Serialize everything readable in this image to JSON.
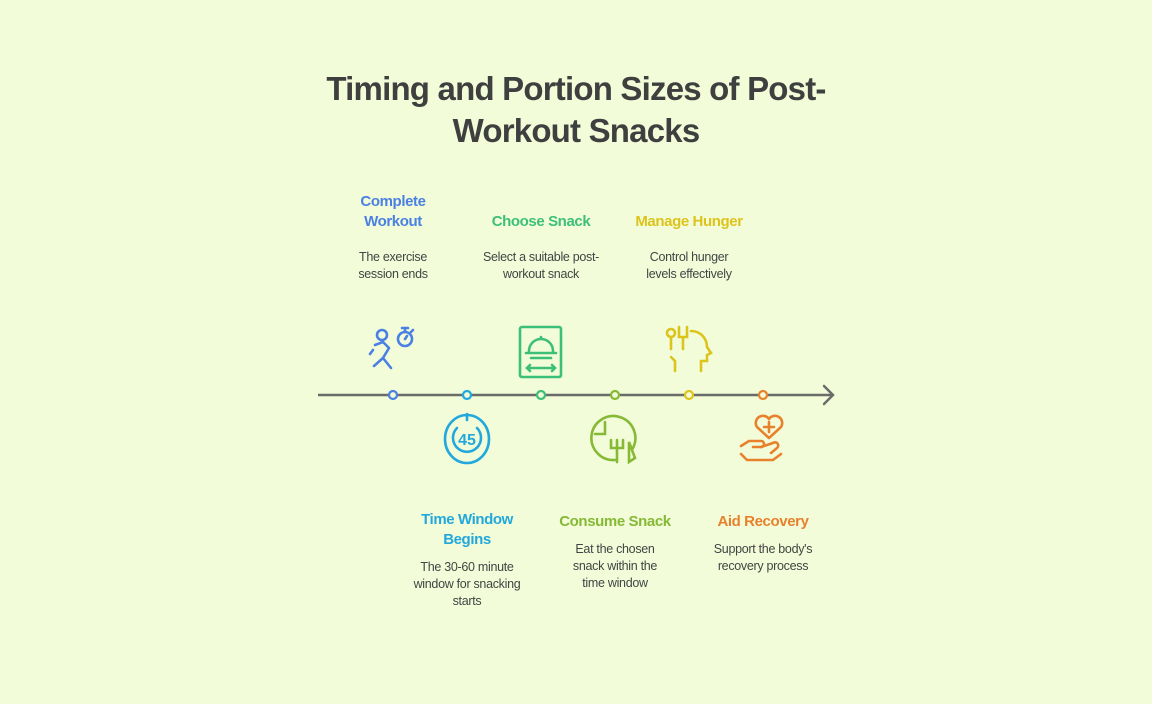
{
  "title": "Timing and Portion Sizes of Post-Workout Snacks",
  "steps": [
    {
      "title": "Complete Workout",
      "desc": "The exercise session ends",
      "color": "#4a80e3",
      "icon": "runner-stopwatch-icon",
      "position": "top"
    },
    {
      "title": "Time Window Begins",
      "desc": "The 30-60 minute window for snacking starts",
      "color": "#22a8dc",
      "icon": "timer-45-icon",
      "position": "bottom"
    },
    {
      "title": "Choose Snack",
      "desc": "Select a suitable post-workout snack",
      "color": "#3dbf7a",
      "icon": "serving-cloche-icon",
      "position": "top"
    },
    {
      "title": "Consume Snack",
      "desc": "Eat the chosen snack within the time window",
      "color": "#86b935",
      "icon": "clock-fork-knife-icon",
      "position": "bottom"
    },
    {
      "title": "Manage Hunger",
      "desc": "Control hunger levels effectively",
      "color": "#dcc41c",
      "icon": "head-utensils-icon",
      "position": "top"
    },
    {
      "title": "Aid Recovery",
      "desc": "Support the body's recovery process",
      "color": "#e8812c",
      "icon": "hand-heart-icon",
      "position": "bottom"
    }
  ],
  "axis_color": "#6b6b6b"
}
